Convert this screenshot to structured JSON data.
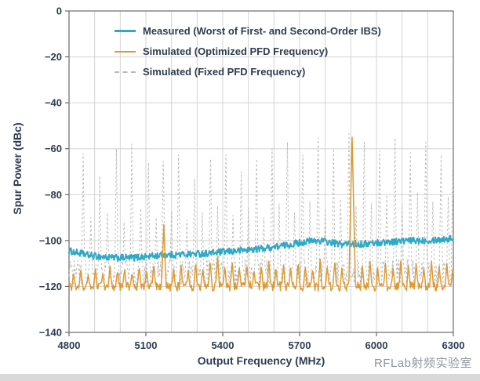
{
  "page": {
    "background": "#ffffff",
    "watermark": "RFLab射频实验室",
    "watermark_color": "#8e979e",
    "footer_bar_color": "#d9d9d9"
  },
  "chart_data": {
    "type": "line",
    "title": "",
    "xlabel": "Output Frequency (MHz)",
    "ylabel": "Spur Power (dBc)",
    "xlim": [
      4800,
      6300
    ],
    "ylim": [
      -140,
      0
    ],
    "x_ticks": [
      4800,
      5100,
      5400,
      5700,
      6000,
      6300
    ],
    "x_tick_labels": [
      "4800",
      "5100",
      "5400",
      "5700",
      "6000",
      "6300"
    ],
    "y_ticks": [
      0,
      -20,
      -40,
      -60,
      -80,
      -100,
      -120,
      -140
    ],
    "y_tick_labels": [
      "0",
      "−20",
      "−40",
      "−60",
      "−80",
      "−100",
      "−120",
      "−140"
    ],
    "x_minor_step": 100,
    "grid": true,
    "grid_color": "#d4d4d4",
    "axis_color": "#6b6b6b",
    "text_color": "#2e3d4f",
    "legend_position": "top-left",
    "series": [
      {
        "id": "measured",
        "name": "Measured (Worst of First- and Second-Order IBS)",
        "color": "#2fa9c6",
        "style": "solid",
        "width": 2,
        "noise_db": 1.5,
        "baseline_points": [
          [
            4800,
            -104.5
          ],
          [
            4880,
            -106.5
          ],
          [
            4960,
            -107.5
          ],
          [
            5050,
            -107.5
          ],
          [
            5150,
            -106.5
          ],
          [
            5250,
            -106
          ],
          [
            5350,
            -105.5
          ],
          [
            5450,
            -104.5
          ],
          [
            5550,
            -103.5
          ],
          [
            5650,
            -102
          ],
          [
            5720,
            -100.5
          ],
          [
            5780,
            -100
          ],
          [
            5850,
            -101.5
          ],
          [
            5950,
            -101.5
          ],
          [
            6050,
            -100.5
          ],
          [
            6150,
            -100
          ],
          [
            6250,
            -99.5
          ],
          [
            6300,
            -99
          ]
        ]
      },
      {
        "id": "simulated-optimized",
        "name": "Simulated (Optimized PFD Frequency)",
        "color": "#dd9a33",
        "style": "solid",
        "width": 1.5,
        "noise_db": 2,
        "spike_halfwidth": 7,
        "baseline_points": [
          [
            4800,
            -120
          ],
          [
            6300,
            -120
          ]
        ],
        "spikes": [
          [
            4818,
            -114
          ],
          [
            4846,
            -112
          ],
          [
            4875,
            -115
          ],
          [
            4903,
            -112
          ],
          [
            4932,
            -114
          ],
          [
            4960,
            -111
          ],
          [
            4989,
            -113
          ],
          [
            5017,
            -112
          ],
          [
            5046,
            -114
          ],
          [
            5074,
            -111
          ],
          [
            5103,
            -113
          ],
          [
            5131,
            -110
          ],
          [
            5170,
            -93,
            9
          ],
          [
            5208,
            -112
          ],
          [
            5237,
            -110
          ],
          [
            5265,
            -113
          ],
          [
            5294,
            -109
          ],
          [
            5322,
            -112
          ],
          [
            5351,
            -108
          ],
          [
            5380,
            -107
          ],
          [
            5408,
            -111
          ],
          [
            5437,
            -109
          ],
          [
            5465,
            -112
          ],
          [
            5494,
            -110
          ],
          [
            5522,
            -113
          ],
          [
            5551,
            -111
          ],
          [
            5580,
            -109
          ],
          [
            5608,
            -112
          ],
          [
            5637,
            -110
          ],
          [
            5665,
            -112
          ],
          [
            5694,
            -109
          ],
          [
            5722,
            -111
          ],
          [
            5751,
            -112
          ],
          [
            5780,
            -108
          ],
          [
            5808,
            -111
          ],
          [
            5837,
            -109
          ],
          [
            5865,
            -112
          ],
          [
            5905,
            -55,
            13
          ],
          [
            5945,
            -111
          ],
          [
            5975,
            -109
          ],
          [
            6005,
            -112
          ],
          [
            6035,
            -110
          ],
          [
            6065,
            -112
          ],
          [
            6095,
            -109
          ],
          [
            6125,
            -111
          ],
          [
            6155,
            -110
          ],
          [
            6185,
            -112
          ],
          [
            6215,
            -109
          ],
          [
            6245,
            -111
          ],
          [
            6275,
            -110
          ],
          [
            6298,
            -112
          ]
        ]
      },
      {
        "id": "simulated-fixed",
        "name": "Simulated (Fixed PFD Frequency)",
        "color": "#b9b9b9",
        "style": "dashed",
        "width": 1,
        "noise_db": 6,
        "spike_halfwidth": 6,
        "baseline_points": [
          [
            4800,
            -114
          ],
          [
            6300,
            -114
          ]
        ],
        "spikes": [
          [
            4855,
            -62
          ],
          [
            4885,
            -90
          ],
          [
            4920,
            -72
          ],
          [
            4950,
            -88
          ],
          [
            4985,
            -60
          ],
          [
            5015,
            -92
          ],
          [
            5045,
            -58
          ],
          [
            5080,
            -86
          ],
          [
            5110,
            -66
          ],
          [
            5140,
            -90
          ],
          [
            5168,
            -61
          ],
          [
            5200,
            -87
          ],
          [
            5228,
            -58
          ],
          [
            5260,
            -91
          ],
          [
            5290,
            -73
          ],
          [
            5320,
            -88
          ],
          [
            5352,
            -60
          ],
          [
            5380,
            -85
          ],
          [
            5412,
            -58
          ],
          [
            5440,
            -89
          ],
          [
            5472,
            -66
          ],
          [
            5500,
            -86
          ],
          [
            5532,
            -60
          ],
          [
            5560,
            -90
          ],
          [
            5592,
            -55
          ],
          [
            5620,
            -84
          ],
          [
            5652,
            -52
          ],
          [
            5680,
            -88
          ],
          [
            5712,
            -58
          ],
          [
            5740,
            -83
          ],
          [
            5772,
            -50
          ],
          [
            5800,
            -86
          ],
          [
            5832,
            -55
          ],
          [
            5860,
            -82
          ],
          [
            5892,
            -48
          ],
          [
            5920,
            -85
          ],
          [
            5952,
            -52
          ],
          [
            5980,
            -84
          ],
          [
            6012,
            -56
          ],
          [
            6040,
            -80
          ],
          [
            6072,
            -50
          ],
          [
            6100,
            -84
          ],
          [
            6132,
            -57
          ],
          [
            6160,
            -79
          ],
          [
            6192,
            -52
          ],
          [
            6220,
            -83
          ],
          [
            6252,
            -58
          ],
          [
            6280,
            -81
          ],
          [
            6298,
            -65
          ]
        ]
      }
    ]
  }
}
